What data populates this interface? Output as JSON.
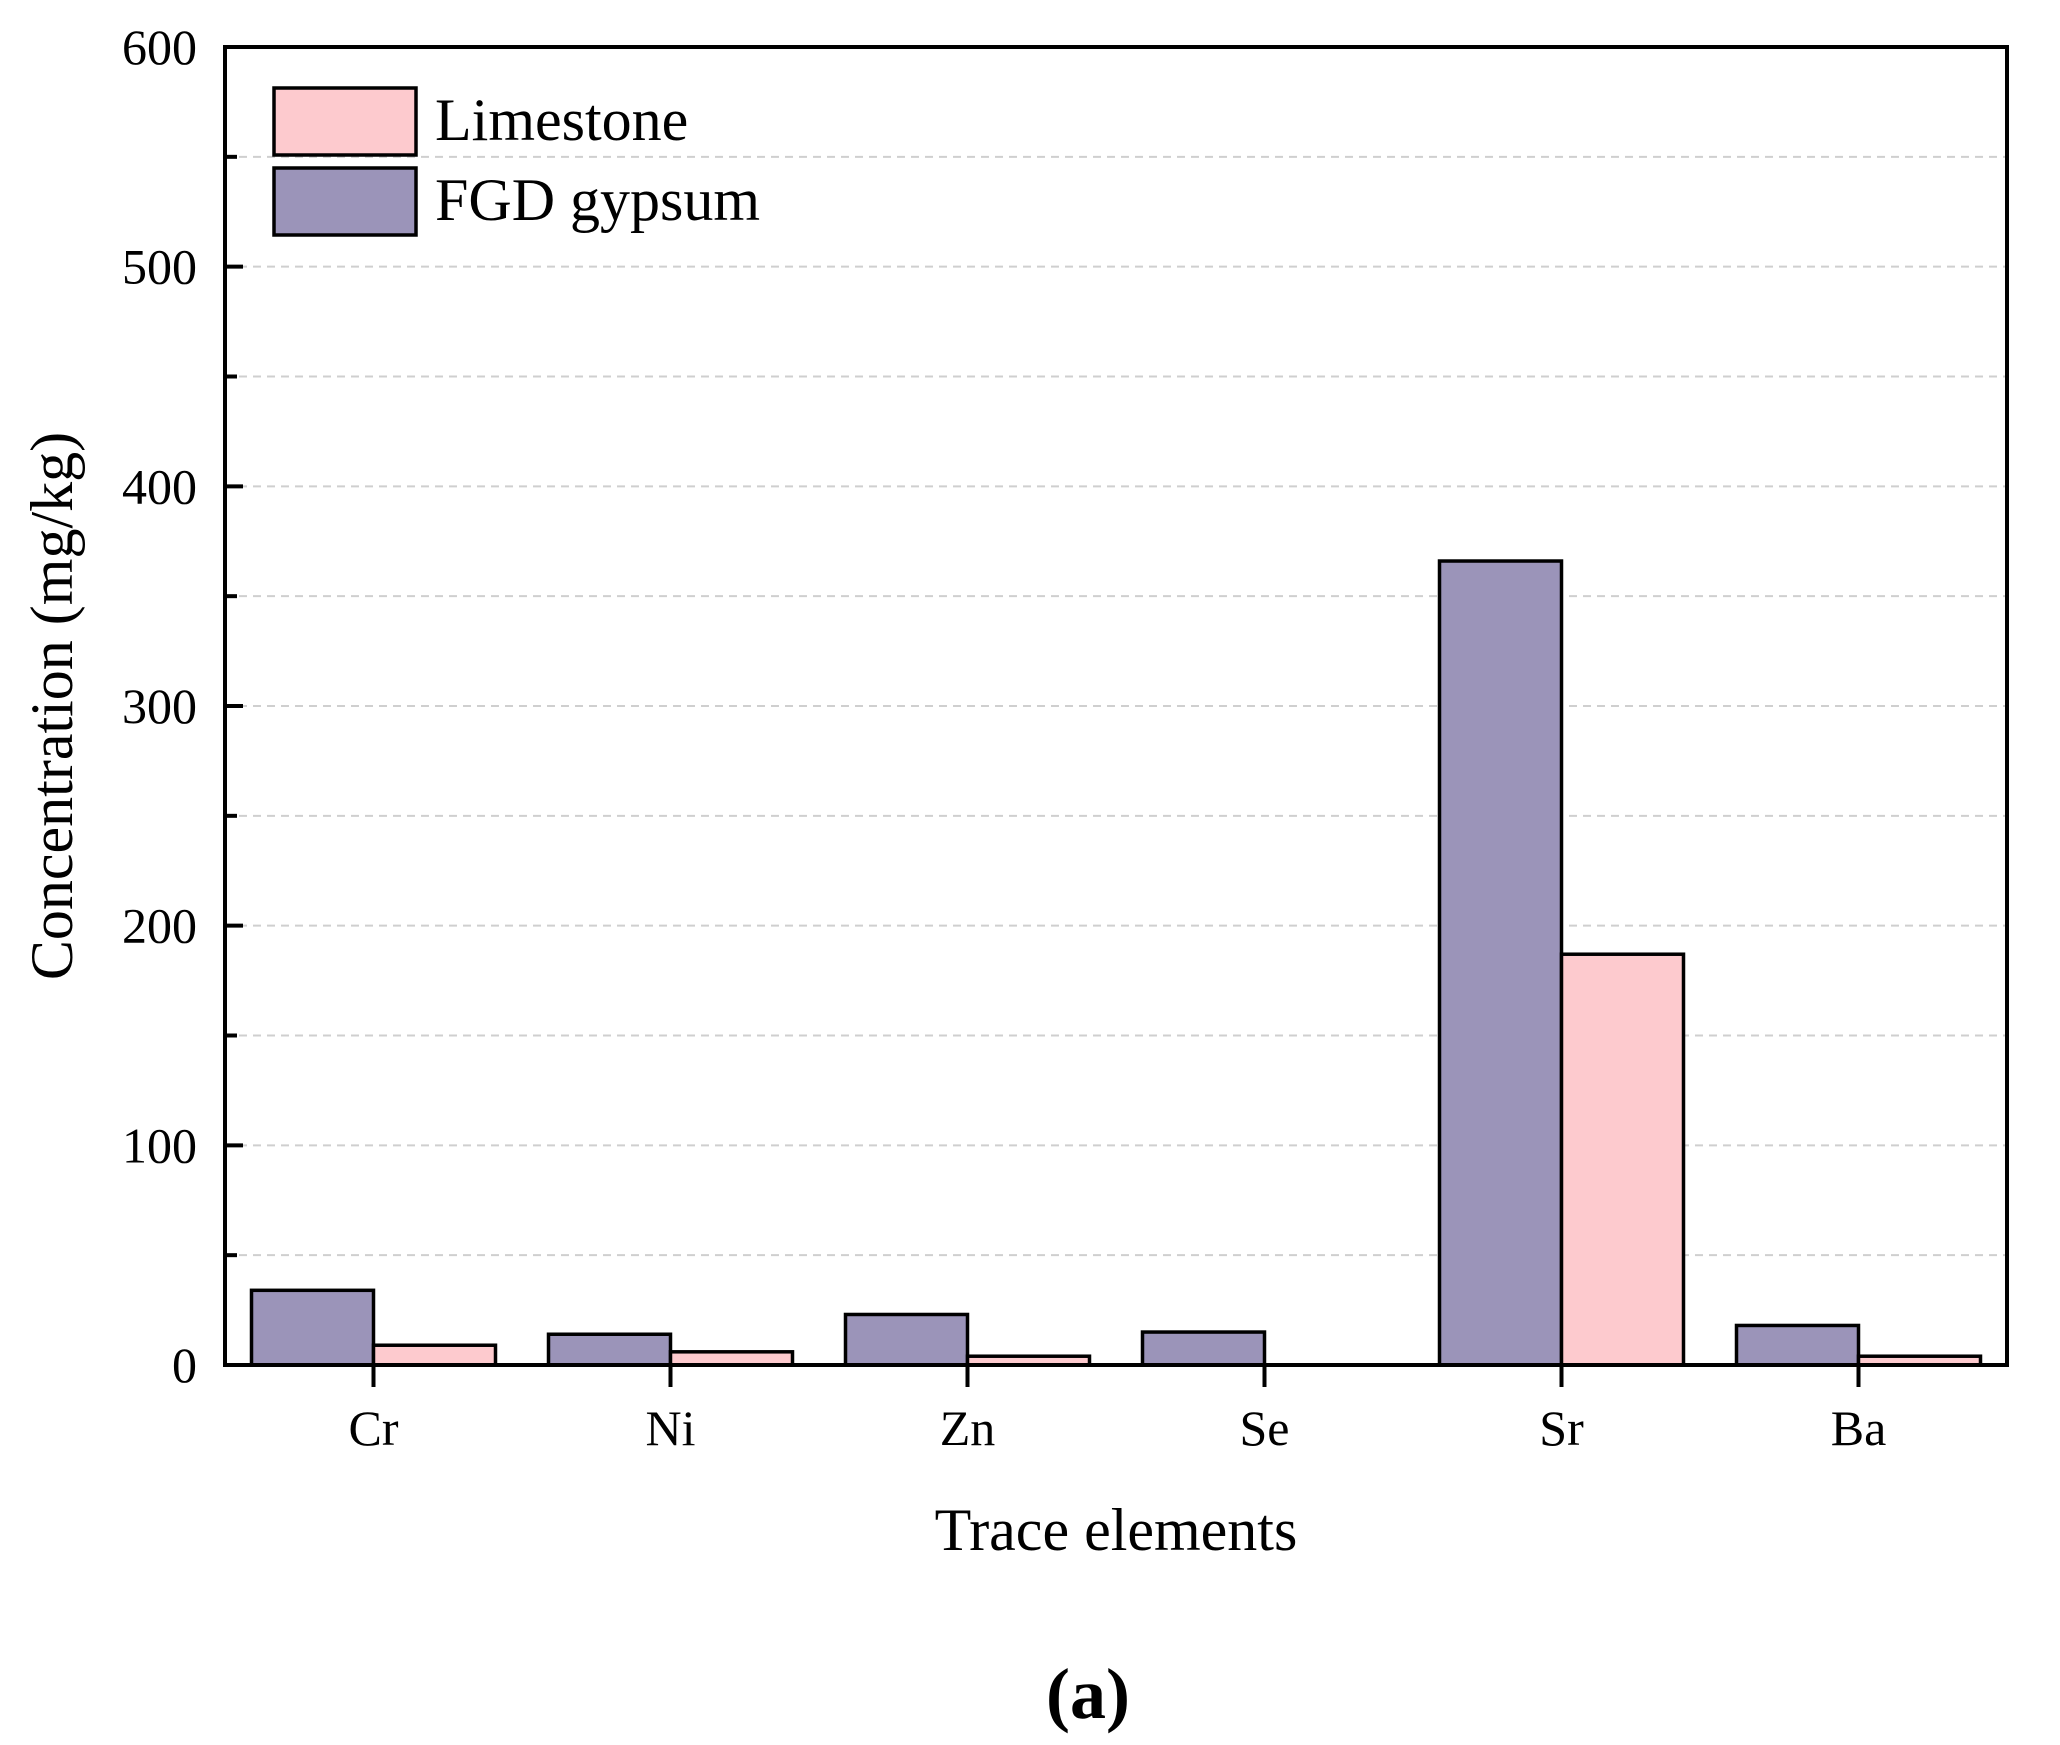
{
  "chart_data": {
    "type": "bar",
    "title": "",
    "xlabel": "Trace elements",
    "ylabel": "Concentration (mg/kg)",
    "ylim": [
      0,
      600
    ],
    "yticks": [
      0,
      100,
      200,
      300,
      400,
      500,
      600
    ],
    "grid": "horizontal dashed",
    "legend_position": "top-left",
    "categories": [
      "Cr",
      "Ni",
      "Zn",
      "Se",
      "Sr",
      "Ba"
    ],
    "series": [
      {
        "name": "FGD gypsum",
        "color": "#9b94b9",
        "values": [
          34,
          14,
          23,
          15,
          366,
          18
        ]
      },
      {
        "name": "Limestone",
        "color": "#fdcace",
        "values": [
          9,
          6,
          4,
          0,
          187,
          4
        ]
      }
    ],
    "legend": [
      "Limestone",
      "FGD gypsum"
    ],
    "panel_label": "(a)"
  }
}
